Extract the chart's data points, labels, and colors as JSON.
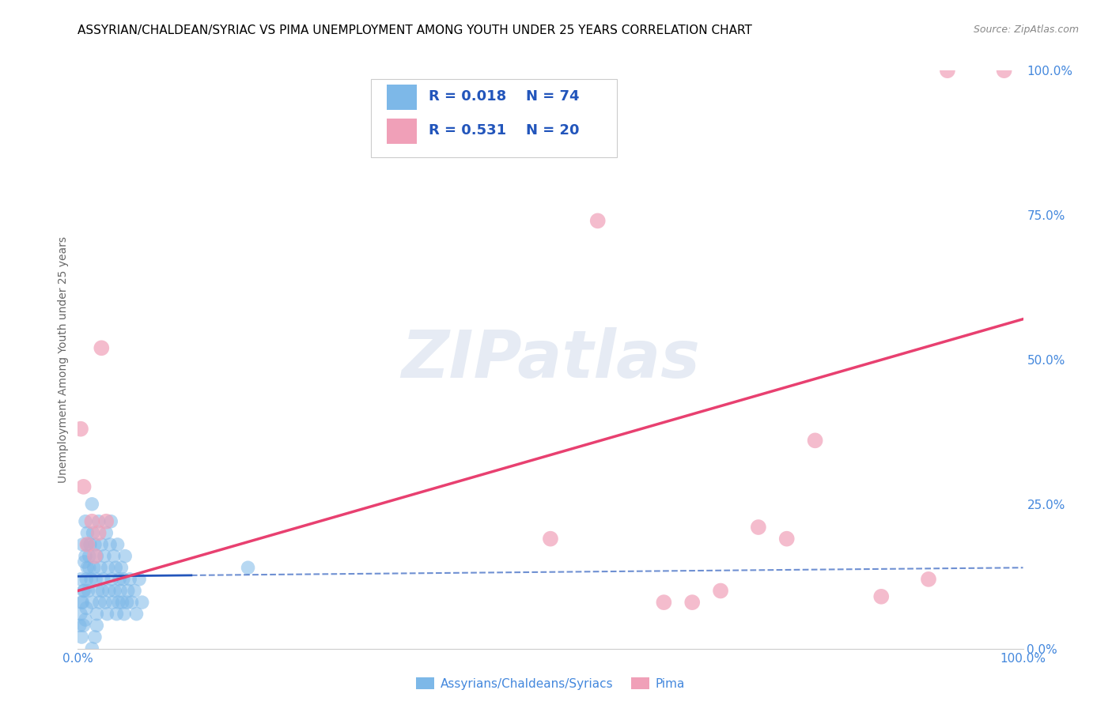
{
  "title": "ASSYRIAN/CHALDEAN/SYRIAC VS PIMA UNEMPLOYMENT AMONG YOUTH UNDER 25 YEARS CORRELATION CHART",
  "source": "Source: ZipAtlas.com",
  "ylabel": "Unemployment Among Youth under 25 years",
  "xlim": [
    0,
    1.0
  ],
  "ylim": [
    0,
    1.0
  ],
  "legend_bottom1": "Assyrians/Chaldeans/Syriacs",
  "legend_bottom2": "Pima",
  "color_blue": "#7db8e8",
  "color_pink": "#f0a0b8",
  "line_blue_color": "#2255bb",
  "line_pink_color": "#e84070",
  "tick_color": "#4488dd",
  "watermark_text": "ZIPatlas",
  "title_fontsize": 11,
  "source_fontsize": 9,
  "legend_r1": "R = 0.018",
  "legend_n1": "N = 74",
  "legend_r2": "R = 0.531",
  "legend_n2": "N = 20",
  "blue_scatter_x": [
    0.003,
    0.004,
    0.005,
    0.006,
    0.007,
    0.008,
    0.008,
    0.009,
    0.01,
    0.01,
    0.011,
    0.012,
    0.013,
    0.014,
    0.015,
    0.015,
    0.016,
    0.017,
    0.018,
    0.019,
    0.02,
    0.02,
    0.021,
    0.022,
    0.023,
    0.024,
    0.025,
    0.026,
    0.027,
    0.028,
    0.029,
    0.03,
    0.031,
    0.032,
    0.033,
    0.034,
    0.035,
    0.036,
    0.037,
    0.038,
    0.039,
    0.04,
    0.041,
    0.042,
    0.043,
    0.044,
    0.045,
    0.046,
    0.047,
    0.048,
    0.049,
    0.05,
    0.052,
    0.053,
    0.055,
    0.057,
    0.06,
    0.062,
    0.065,
    0.068,
    0.002,
    0.003,
    0.004,
    0.005,
    0.006,
    0.007,
    0.008,
    0.009,
    0.01,
    0.012,
    0.015,
    0.018,
    0.02,
    0.18
  ],
  "blue_scatter_y": [
    0.12,
    0.08,
    0.18,
    0.1,
    0.15,
    0.22,
    0.05,
    0.07,
    0.2,
    0.14,
    0.1,
    0.16,
    0.18,
    0.12,
    0.25,
    0.08,
    0.2,
    0.14,
    0.18,
    0.12,
    0.16,
    0.06,
    0.1,
    0.22,
    0.08,
    0.14,
    0.18,
    0.1,
    0.12,
    0.16,
    0.08,
    0.2,
    0.06,
    0.14,
    0.1,
    0.18,
    0.22,
    0.12,
    0.08,
    0.16,
    0.1,
    0.14,
    0.06,
    0.18,
    0.08,
    0.12,
    0.1,
    0.14,
    0.08,
    0.12,
    0.06,
    0.16,
    0.08,
    0.1,
    0.12,
    0.08,
    0.1,
    0.06,
    0.12,
    0.08,
    0.04,
    0.06,
    0.02,
    0.08,
    0.04,
    0.1,
    0.16,
    0.12,
    0.18,
    0.14,
    0.0,
    0.02,
    0.04,
    0.14
  ],
  "pink_scatter_x": [
    0.003,
    0.006,
    0.01,
    0.015,
    0.018,
    0.022,
    0.025,
    0.03,
    0.5,
    0.62,
    0.68,
    0.72,
    0.78,
    0.85,
    0.9,
    0.92,
    0.55,
    0.65,
    0.75,
    0.98
  ],
  "pink_scatter_y": [
    0.38,
    0.28,
    0.18,
    0.22,
    0.16,
    0.2,
    0.52,
    0.22,
    0.19,
    0.08,
    0.1,
    0.21,
    0.36,
    0.09,
    0.12,
    1.0,
    0.74,
    0.08,
    0.19,
    1.0
  ],
  "blue_line_x0": 0.0,
  "blue_line_x1": 1.0,
  "blue_line_y0": 0.125,
  "blue_line_y1": 0.14,
  "blue_line_solid_end": 0.12,
  "pink_line_x0": 0.0,
  "pink_line_x1": 1.0,
  "pink_line_y0": 0.1,
  "pink_line_y1": 0.57
}
